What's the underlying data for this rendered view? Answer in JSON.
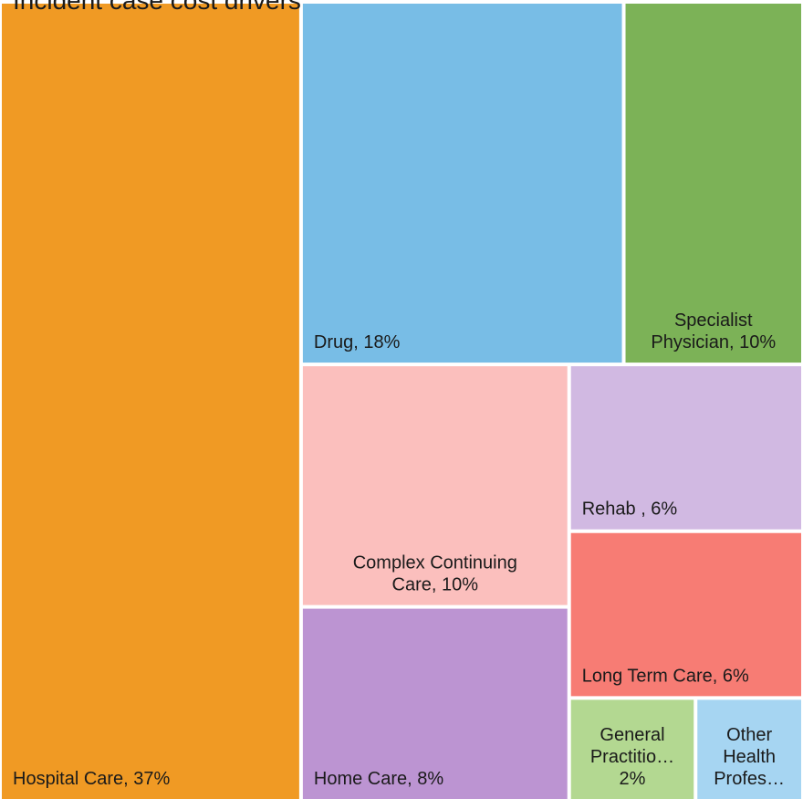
{
  "chart_data": {
    "type": "treemap",
    "title": "Incident case cost drivers",
    "labels": [
      [
        "Hospital Care, 37%"
      ],
      [
        "Drug, 18%"
      ],
      [
        "Specialist",
        "Physician, 10%"
      ],
      [
        "Complex Continuing",
        "Care, 10%"
      ],
      [
        "Home Care, 8%"
      ],
      [
        "Rehab , 6%"
      ],
      [
        "Long Term Care, 6%"
      ],
      [
        "General",
        "Practitio…",
        "2%"
      ],
      [
        "Other",
        "Health",
        "Profes…"
      ]
    ],
    "values": [
      37,
      18,
      10,
      10,
      8,
      6,
      6,
      2,
      1.7
    ],
    "colors": [
      "#f09a24",
      "#78bde6",
      "#7cb257",
      "#fbbfbd",
      "#bc94d2",
      "#d1b9e2",
      "#f77c74",
      "#b3d891",
      "#a6d5f2"
    ]
  }
}
